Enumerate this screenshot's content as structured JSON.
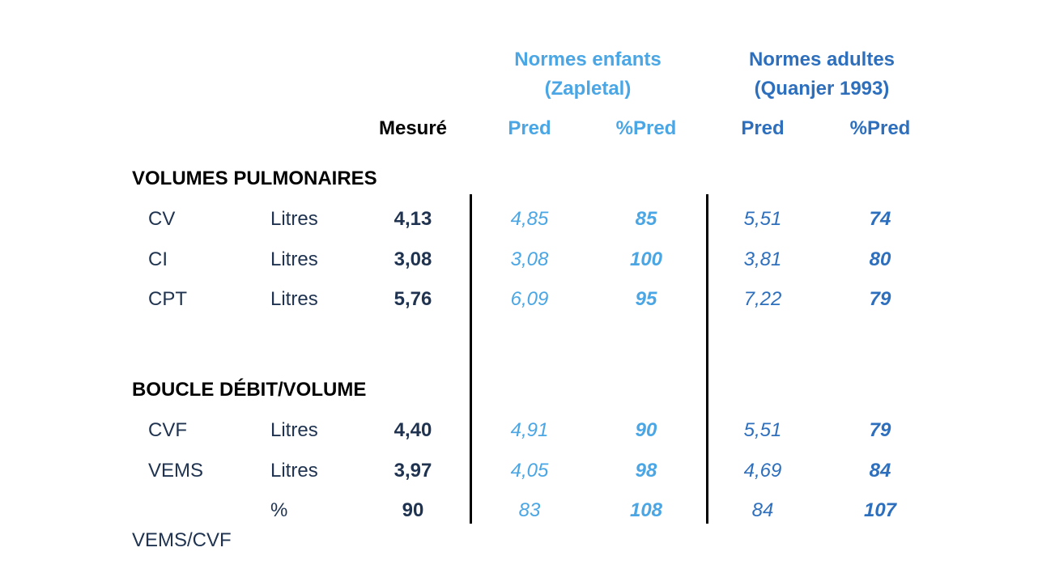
{
  "headers": {
    "children_norms_line1": "Normes enfants",
    "children_norms_line2": "(Zapletal)",
    "adult_norms_line1": "Normes adultes",
    "adult_norms_line2": "(Quanjer 1993)",
    "measured": "Mesuré",
    "children_pred": "Pred",
    "children_pct_pred": "%Pred",
    "adult_pred": "Pred",
    "adult_pct_pred": "%Pred"
  },
  "sections": {
    "volumes_title": "VOLUMES PULMONAIRES",
    "flow_title": "BOUCLE DÉBIT/VOLUME"
  },
  "rows": [
    {
      "label": "CV",
      "unit": "Litres",
      "measured": "4,13",
      "child_pred": "4,85",
      "child_pct": "85",
      "adult_pred": "5,51",
      "adult_pct": "74"
    },
    {
      "label": "CI",
      "unit": "Litres",
      "measured": "3,08",
      "child_pred": "3,08",
      "child_pct": "100",
      "adult_pred": "3,81",
      "adult_pct": "80"
    },
    {
      "label": "CPT",
      "unit": "Litres",
      "measured": "5,76",
      "child_pred": "6,09",
      "child_pct": "95",
      "adult_pred": "7,22",
      "adult_pct": "79"
    },
    {
      "label": "CVF",
      "unit": "Litres",
      "measured": "4,40",
      "child_pred": "4,91",
      "child_pct": "90",
      "adult_pred": "5,51",
      "adult_pct": "79"
    },
    {
      "label": "VEMS",
      "unit": "Litres",
      "measured": "3,97",
      "child_pred": "4,05",
      "child_pct": "98",
      "adult_pred": "4,69",
      "adult_pct": "84"
    },
    {
      "label": "VEMS/CVF",
      "unit": "%",
      "measured": "90",
      "child_pred": "83",
      "child_pct": "108",
      "adult_pred": "84",
      "adult_pct": "107"
    }
  ],
  "colors": {
    "children": "#4aa6e4",
    "adults": "#2e6fbd",
    "measured": "#1f3350"
  }
}
